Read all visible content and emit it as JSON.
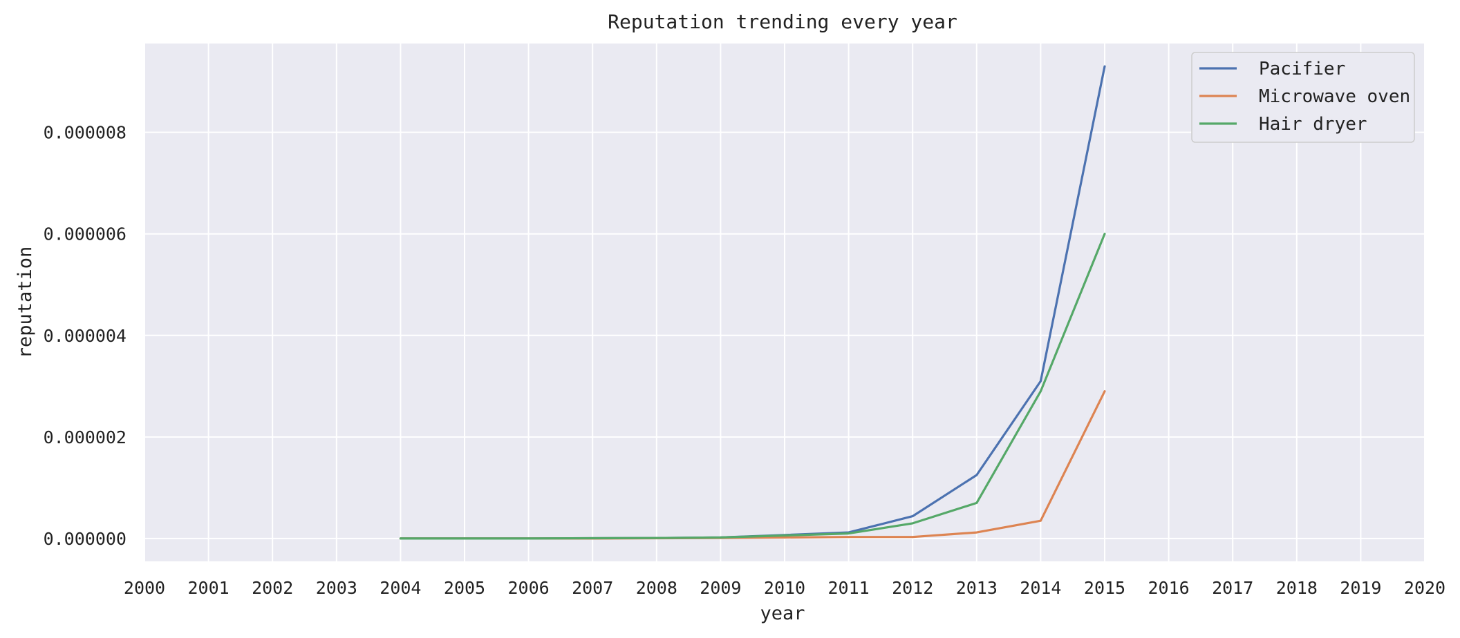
{
  "chart_data": {
    "type": "line",
    "title": "Reputation trending every year",
    "xlabel": "year",
    "ylabel": "reputation",
    "xlim": [
      2000,
      2020
    ],
    "ylim": [
      -4.5e-07,
      9.75e-06
    ],
    "grid": true,
    "legend_position": "top-right",
    "x_ticks": [
      2000,
      2001,
      2002,
      2003,
      2004,
      2005,
      2006,
      2007,
      2008,
      2009,
      2010,
      2011,
      2012,
      2013,
      2014,
      2015,
      2016,
      2017,
      2018,
      2019,
      2020
    ],
    "x_tick_labels": [
      "2000",
      "2001",
      "2002",
      "2003",
      "2004",
      "2005",
      "2006",
      "2007",
      "2008",
      "2009",
      "2010",
      "2011",
      "2012",
      "2013",
      "2014",
      "2015",
      "2016",
      "2017",
      "2018",
      "2019",
      "2020"
    ],
    "y_ticks": [
      0,
      2e-06,
      4e-06,
      6e-06,
      8e-06
    ],
    "y_tick_labels": [
      "0.000000",
      "0.000002",
      "0.000004",
      "0.000006",
      "0.000008"
    ],
    "x": [
      2004,
      2005,
      2006,
      2007,
      2008,
      2009,
      2010,
      2011,
      2012,
      2013,
      2014,
      2015
    ],
    "series": [
      {
        "name": "Pacifier",
        "color": "#4c72b0",
        "values": [
          0,
          0,
          0,
          5e-09,
          1e-08,
          2e-08,
          7e-08,
          1.2e-07,
          4.4e-07,
          1.25e-06,
          3.1e-06,
          9.3e-06
        ]
      },
      {
        "name": "Microwave oven",
        "color": "#dd8452",
        "values": [
          0,
          0,
          0,
          0,
          5e-09,
          1e-08,
          2e-08,
          3e-08,
          3e-08,
          1.2e-07,
          3.5e-07,
          2.9e-06
        ]
      },
      {
        "name": "Hair dryer",
        "color": "#55a868",
        "values": [
          0,
          0,
          0,
          5e-09,
          1e-08,
          2e-08,
          6e-08,
          1e-07,
          3e-07,
          7e-07,
          2.9e-06,
          6e-06
        ]
      }
    ],
    "colors": {
      "plot_background": "#eaeaf2",
      "grid": "#ffffff",
      "legend_background": "#eaeaf2",
      "legend_border": "#cccccc"
    }
  }
}
